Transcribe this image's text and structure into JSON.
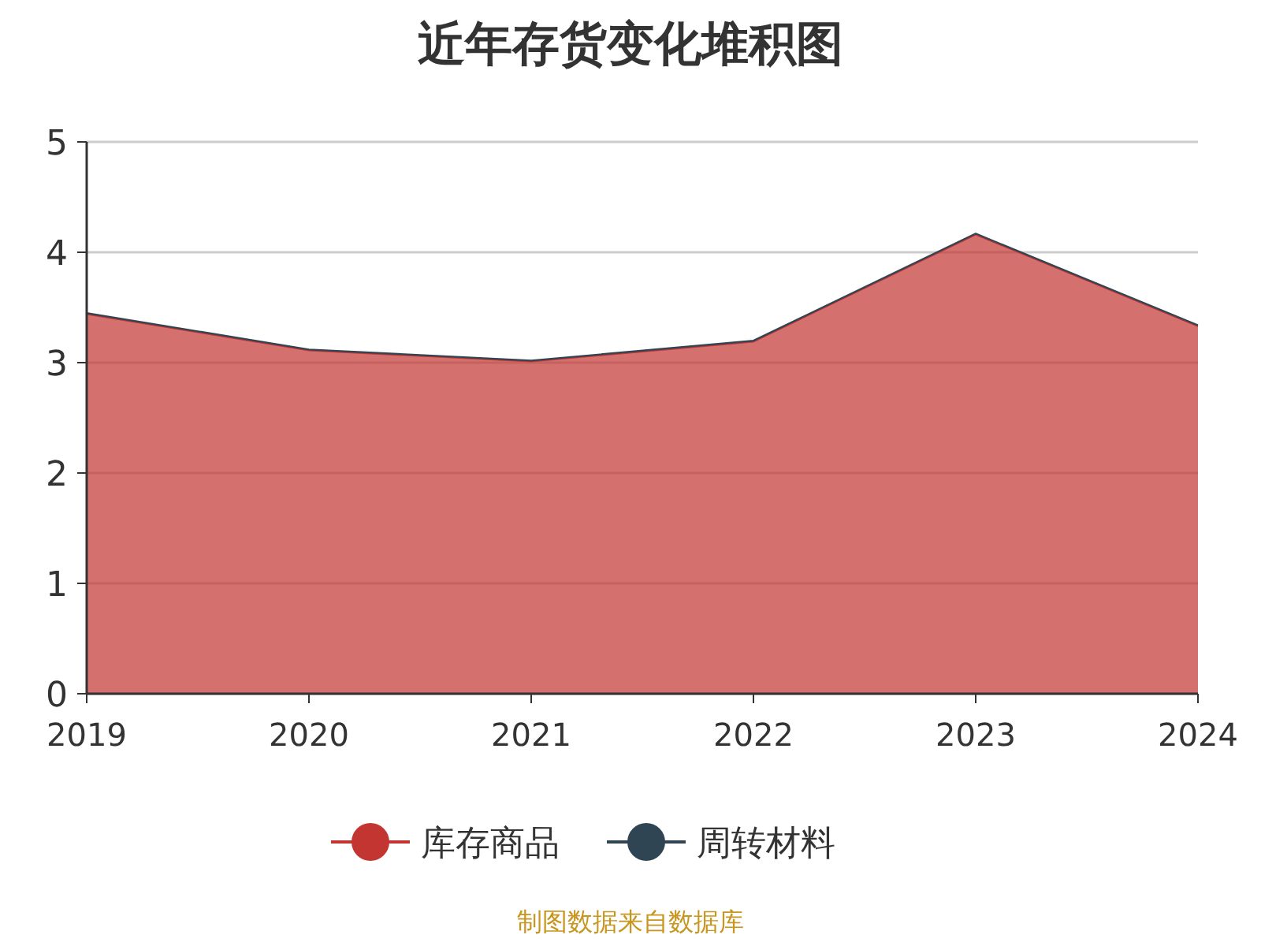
{
  "chart_data": {
    "type": "area",
    "title": "近年存货变化堆积图",
    "stacked": true,
    "categories": [
      "2019",
      "2020",
      "2021",
      "2022",
      "2023",
      "2024"
    ],
    "series": [
      {
        "name": "库存商品",
        "color": "#c23531",
        "values": [
          3.44,
          3.11,
          3.01,
          3.19,
          4.16,
          3.33
        ]
      },
      {
        "name": "周转材料",
        "color": "#2f4554",
        "values": [
          0.01,
          0.01,
          0.01,
          0.01,
          0.01,
          0.01
        ]
      }
    ],
    "ylim": [
      0,
      5
    ],
    "yticks": [
      0,
      1,
      2,
      3,
      4,
      5
    ],
    "grid": "y",
    "legend": "bottom",
    "annotations": [
      "制图数据来自数据库"
    ]
  }
}
